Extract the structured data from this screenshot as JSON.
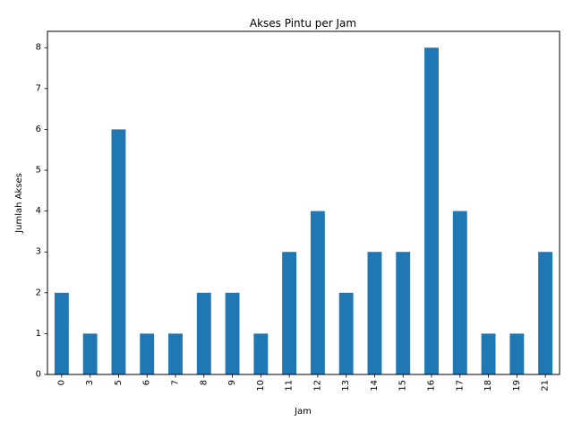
{
  "chart_data": {
    "type": "bar",
    "title": "Akses Pintu per Jam",
    "xlabel": "Jam",
    "ylabel": "Jumlah Akses",
    "categories": [
      "0",
      "3",
      "5",
      "6",
      "7",
      "8",
      "9",
      "10",
      "11",
      "12",
      "13",
      "14",
      "15",
      "16",
      "17",
      "18",
      "19",
      "21"
    ],
    "values": [
      2,
      1,
      6,
      1,
      1,
      2,
      2,
      1,
      3,
      4,
      2,
      3,
      3,
      8,
      4,
      1,
      1,
      3
    ],
    "ylim": [
      0,
      8.4
    ],
    "yticks": [
      "0",
      "1",
      "2",
      "3",
      "4",
      "5",
      "6",
      "7",
      "8"
    ],
    "bar_color": "#1f77b4",
    "grid": false,
    "legend": "none"
  }
}
